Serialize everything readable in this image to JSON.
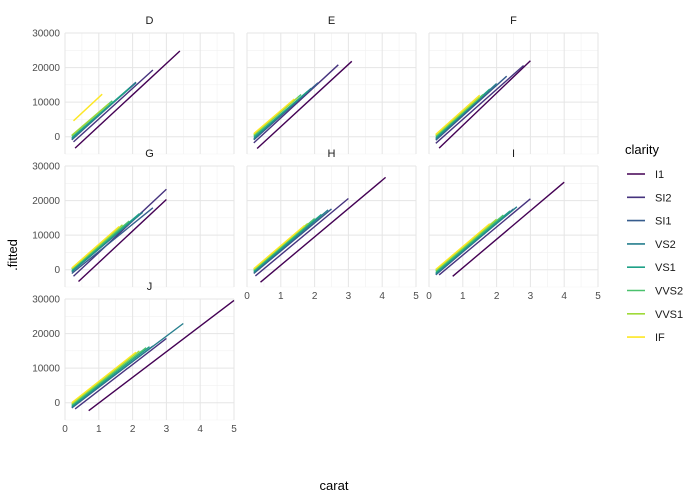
{
  "chart_data": {
    "type": "line",
    "xlabel": "carat",
    "ylabel": ".fitted",
    "xlim": [
      0,
      5
    ],
    "ylim": [
      -5000,
      30000
    ],
    "x_ticks": [
      0,
      1,
      2,
      3,
      4,
      5
    ],
    "y_ticks": [
      0,
      10000,
      20000,
      30000
    ],
    "grid": true,
    "legend": {
      "title": "clarity",
      "position": "right",
      "entries": [
        "I1",
        "SI2",
        "SI1",
        "VS2",
        "VS1",
        "VVS2",
        "VVS1",
        "IF"
      ]
    },
    "series_colors": {
      "I1": "#440154",
      "SI2": "#46337E",
      "SI1": "#365C8D",
      "VS2": "#277F8E",
      "VS1": "#1FA187",
      "VVS2": "#4AC16D",
      "VVS1": "#9FDA3A",
      "IF": "#FDE725"
    },
    "facets": [
      {
        "label": "D",
        "series": [
          {
            "name": "I1",
            "x": [
              0.3,
              3.4
            ],
            "y": [
              -3300,
              24800
            ]
          },
          {
            "name": "SI2",
            "x": [
              0.25,
              2.6
            ],
            "y": [
              -1500,
              19300
            ]
          },
          {
            "name": "SI1",
            "x": [
              0.2,
              2.1
            ],
            "y": [
              -900,
              15800
            ]
          },
          {
            "name": "VS2",
            "x": [
              0.2,
              2.1
            ],
            "y": [
              -700,
              15600
            ]
          },
          {
            "name": "VS1",
            "x": [
              0.2,
              1.9
            ],
            "y": [
              -300,
              14000
            ]
          },
          {
            "name": "VVS2",
            "x": [
              0.2,
              1.4
            ],
            "y": [
              200,
              10400
            ]
          },
          {
            "name": "VVS1",
            "x": [
              0.2,
              1.3
            ],
            "y": [
              400,
              9600
            ]
          },
          {
            "name": "IF",
            "x": [
              0.25,
              1.1
            ],
            "y": [
              4600,
              12300
            ]
          }
        ]
      },
      {
        "label": "E",
        "series": [
          {
            "name": "I1",
            "x": [
              0.3,
              3.1
            ],
            "y": [
              -3400,
              21800
            ]
          },
          {
            "name": "SI2",
            "x": [
              0.2,
              2.7
            ],
            "y": [
              -1800,
              20800
            ]
          },
          {
            "name": "SI1",
            "x": [
              0.2,
              2.1
            ],
            "y": [
              -900,
              15600
            ]
          },
          {
            "name": "VS2",
            "x": [
              0.2,
              1.9
            ],
            "y": [
              -600,
              14000
            ]
          },
          {
            "name": "VS1",
            "x": [
              0.2,
              1.8
            ],
            "y": [
              -200,
              13200
            ]
          },
          {
            "name": "VVS2",
            "x": [
              0.2,
              1.6
            ],
            "y": [
              300,
              12200
            ]
          },
          {
            "name": "VVS1",
            "x": [
              0.2,
              1.5
            ],
            "y": [
              600,
              11300
            ]
          },
          {
            "name": "IF",
            "x": [
              0.2,
              1.4
            ],
            "y": [
              900,
              10900
            ]
          }
        ]
      },
      {
        "label": "F",
        "series": [
          {
            "name": "I1",
            "x": [
              0.3,
              3.0
            ],
            "y": [
              -3300,
              22000
            ]
          },
          {
            "name": "SI2",
            "x": [
              0.2,
              2.8
            ],
            "y": [
              -1900,
              20600
            ]
          },
          {
            "name": "SI1",
            "x": [
              0.2,
              2.3
            ],
            "y": [
              -1000,
              17500
            ]
          },
          {
            "name": "VS2",
            "x": [
              0.2,
              2.0
            ],
            "y": [
              -700,
              15400
            ]
          },
          {
            "name": "VS1",
            "x": [
              0.2,
              1.8
            ],
            "y": [
              -300,
              13800
            ]
          },
          {
            "name": "VVS2",
            "x": [
              0.2,
              1.6
            ],
            "y": [
              100,
              12200
            ]
          },
          {
            "name": "VVS1",
            "x": [
              0.2,
              1.5
            ],
            "y": [
              400,
              11500
            ]
          },
          {
            "name": "IF",
            "x": [
              0.2,
              1.5
            ],
            "y": [
              700,
              12000
            ]
          }
        ]
      },
      {
        "label": "G",
        "series": [
          {
            "name": "I1",
            "x": [
              0.4,
              3.0
            ],
            "y": [
              -3400,
              20300
            ]
          },
          {
            "name": "SI2",
            "x": [
              0.25,
              3.0
            ],
            "y": [
              -1900,
              23300
            ]
          },
          {
            "name": "SI1",
            "x": [
              0.2,
              2.6
            ],
            "y": [
              -1100,
              17900
            ]
          },
          {
            "name": "VS2",
            "x": [
              0.2,
              2.3
            ],
            "y": [
              -600,
              16600
            ]
          },
          {
            "name": "VS1",
            "x": [
              0.2,
              2.2
            ],
            "y": [
              -300,
              16200
            ]
          },
          {
            "name": "VVS2",
            "x": [
              0.2,
              1.9
            ],
            "y": [
              100,
              14100
            ]
          },
          {
            "name": "VVS1",
            "x": [
              0.2,
              1.7
            ],
            "y": [
              300,
              13000
            ]
          },
          {
            "name": "IF",
            "x": [
              0.2,
              1.6
            ],
            "y": [
              500,
              12500
            ]
          }
        ]
      },
      {
        "label": "H",
        "series": [
          {
            "name": "I1",
            "x": [
              0.4,
              4.1
            ],
            "y": [
              -3600,
              26700
            ]
          },
          {
            "name": "SI2",
            "x": [
              0.25,
              3.0
            ],
            "y": [
              -1800,
              20600
            ]
          },
          {
            "name": "SI1",
            "x": [
              0.2,
              2.5
            ],
            "y": [
              -1100,
              17600
            ]
          },
          {
            "name": "VS2",
            "x": [
              0.2,
              2.4
            ],
            "y": [
              -800,
              17300
            ]
          },
          {
            "name": "VS1",
            "x": [
              0.2,
              2.2
            ],
            "y": [
              -500,
              16000
            ]
          },
          {
            "name": "VVS2",
            "x": [
              0.2,
              2.0
            ],
            "y": [
              -200,
              14800
            ]
          },
          {
            "name": "VVS1",
            "x": [
              0.2,
              1.8
            ],
            "y": [
              100,
              13400
            ]
          },
          {
            "name": "IF",
            "x": [
              0.2,
              1.7
            ],
            "y": [
              300,
              12800
            ]
          }
        ]
      },
      {
        "label": "I",
        "series": [
          {
            "name": "I1",
            "x": [
              0.7,
              4.0
            ],
            "y": [
              -1900,
              25300
            ]
          },
          {
            "name": "SI2",
            "x": [
              0.3,
              3.0
            ],
            "y": [
              -1500,
              20500
            ]
          },
          {
            "name": "SI1",
            "x": [
              0.2,
              2.5
            ],
            "y": [
              -1500,
              17600
            ]
          },
          {
            "name": "VS2",
            "x": [
              0.2,
              2.6
            ],
            "y": [
              -1200,
              18200
            ]
          },
          {
            "name": "VS1",
            "x": [
              0.2,
              2.4
            ],
            "y": [
              -900,
              17000
            ]
          },
          {
            "name": "VVS2",
            "x": [
              0.2,
              2.2
            ],
            "y": [
              -500,
              15800
            ]
          },
          {
            "name": "VVS1",
            "x": [
              0.2,
              2.0
            ],
            "y": [
              -200,
              14600
            ]
          },
          {
            "name": "IF",
            "x": [
              0.2,
              1.8
            ],
            "y": [
              100,
              13300
            ]
          }
        ]
      },
      {
        "label": "J",
        "series": [
          {
            "name": "I1",
            "x": [
              0.7,
              5.0
            ],
            "y": [
              -2300,
              29600
            ]
          },
          {
            "name": "SI2",
            "x": [
              0.3,
              3.0
            ],
            "y": [
              -1800,
              18600
            ]
          },
          {
            "name": "SI1",
            "x": [
              0.2,
              2.6
            ],
            "y": [
              -1500,
              16400
            ]
          },
          {
            "name": "VS2",
            "x": [
              0.2,
              3.5
            ],
            "y": [
              -1300,
              22900
            ]
          },
          {
            "name": "VS1",
            "x": [
              0.2,
              2.5
            ],
            "y": [
              -1000,
              16200
            ]
          },
          {
            "name": "VVS2",
            "x": [
              0.2,
              2.4
            ],
            "y": [
              -600,
              15900
            ]
          },
          {
            "name": "VVS1",
            "x": [
              0.2,
              2.2
            ],
            "y": [
              -300,
              15000
            ]
          },
          {
            "name": "IF",
            "x": [
              0.2,
              2.1
            ],
            "y": [
              0,
              14600
            ]
          }
        ]
      }
    ]
  }
}
